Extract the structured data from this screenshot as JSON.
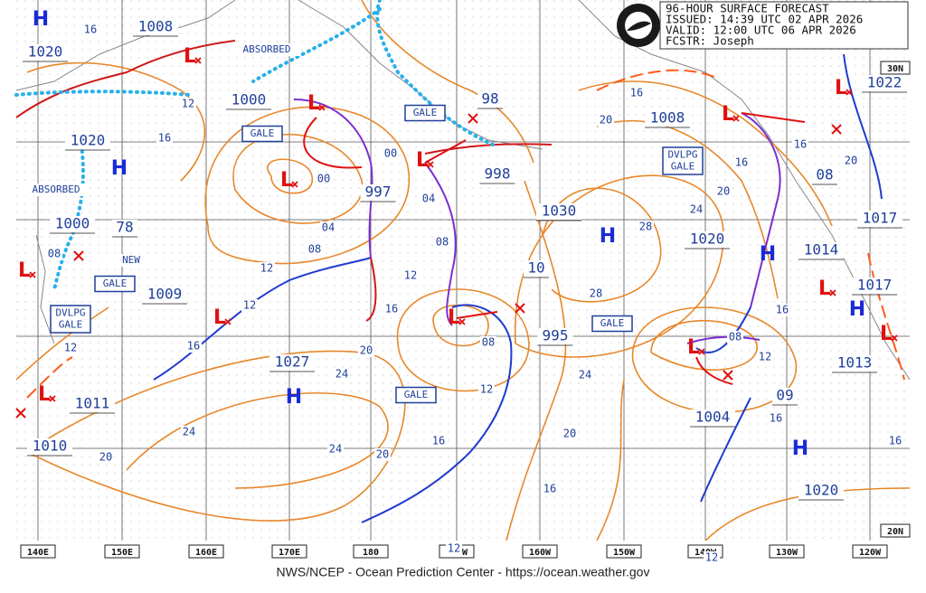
{
  "header": {
    "lines": [
      "96-HOUR SURFACE FORECAST",
      "ISSUED: 14:39 UTC 02 APR 2026",
      "VALID:  12:00 UTC 06 APR 2026",
      "FCSTR:  Joseph"
    ]
  },
  "footer": "NWS/NCEP - Ocean Prediction Center - https://ocean.weather.gov",
  "longitudes": [
    "140E",
    "150E",
    "160E",
    "170E",
    "180",
    "170W",
    "160W",
    "150W",
    "140W",
    "130W",
    "120W"
  ],
  "latitudes": [
    "30N",
    "20N"
  ],
  "high_symbol": "H",
  "low_symbol": "L",
  "pressures": [
    "1008",
    "1020",
    "1000",
    "1020",
    "997",
    "98",
    "998",
    "1030",
    "10",
    "1009",
    "1027",
    "995",
    "1011",
    "1010",
    "1008",
    "1020",
    "1014",
    "1017",
    "1017",
    "1013",
    "08",
    "1022",
    "09",
    "1004",
    "1020",
    "78",
    "1000"
  ],
  "isobar_labels": [
    "16",
    "12",
    "16",
    "00",
    "04",
    "04",
    "08",
    "08",
    "12",
    "12",
    "12",
    "16",
    "16",
    "20",
    "24",
    "24",
    "24",
    "20",
    "20",
    "16",
    "12",
    "08",
    "16",
    "20",
    "24",
    "28",
    "28",
    "24",
    "20",
    "16",
    "20",
    "16",
    "16",
    "20",
    "16",
    "12",
    "08",
    "16",
    "16",
    "12",
    "12",
    "08",
    "12",
    "00"
  ],
  "boxed_labels": [
    "GALE",
    "GALE",
    "GALE",
    "GALE",
    "GALE",
    "DVLPG\nGALE",
    "DVLPG\nGALE"
  ],
  "plain_labels": [
    "ABSORBED",
    "ABSORBED",
    "NEW"
  ]
}
